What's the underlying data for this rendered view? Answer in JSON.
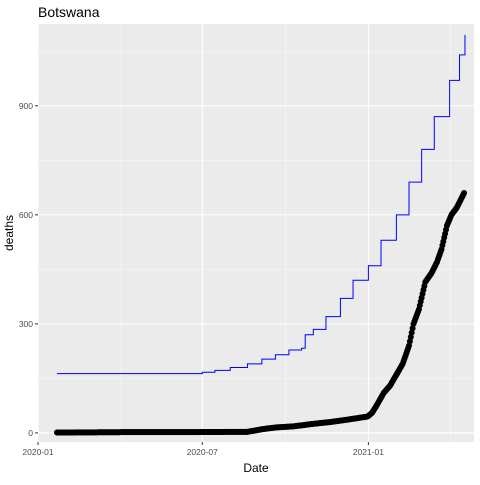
{
  "chart_data": {
    "type": "line",
    "title": "Botswana",
    "xlabel": "Date",
    "ylabel": "deaths",
    "x_type": "date",
    "xlim": [
      "2020-01-01",
      "2021-04-28"
    ],
    "ylim": [
      -25,
      1125
    ],
    "x_ticks": [
      "2020-01-01",
      "2020-07-01",
      "2021-01-01"
    ],
    "x_tick_labels": [
      "2020-01",
      "2020-07",
      "2021-01"
    ],
    "y_ticks": [
      0,
      300,
      600,
      900
    ],
    "y_tick_labels": [
      "0",
      "300",
      "600",
      "900"
    ],
    "grid": true,
    "legend": "none",
    "series": [
      {
        "kind": "step-line",
        "color": "#0000ff",
        "points": [
          [
            "2020-01-22",
            163
          ],
          [
            "2020-06-10",
            163
          ],
          [
            "2020-07-01",
            167
          ],
          [
            "2020-07-15",
            172
          ],
          [
            "2020-08-01",
            180
          ],
          [
            "2020-08-20",
            190
          ],
          [
            "2020-09-05",
            203
          ],
          [
            "2020-09-20",
            215
          ],
          [
            "2020-10-05",
            228
          ],
          [
            "2020-10-19",
            233
          ],
          [
            "2020-10-23",
            270
          ],
          [
            "2020-11-01",
            285
          ],
          [
            "2020-11-15",
            320
          ],
          [
            "2020-12-01",
            370
          ],
          [
            "2020-12-15",
            420
          ],
          [
            "2021-01-01",
            460
          ],
          [
            "2021-01-15",
            530
          ],
          [
            "2021-02-01",
            600
          ],
          [
            "2021-02-15",
            690
          ],
          [
            "2021-03-01",
            780
          ],
          [
            "2021-03-15",
            870
          ],
          [
            "2021-04-01",
            970
          ],
          [
            "2021-04-12",
            1040
          ],
          [
            "2021-04-18",
            1095
          ]
        ]
      },
      {
        "kind": "points",
        "color": "#000000",
        "points": [
          [
            "2020-01-22",
            1
          ],
          [
            "2020-04-01",
            2
          ],
          [
            "2020-06-01",
            2
          ],
          [
            "2020-08-20",
            3
          ],
          [
            "2020-09-05",
            10
          ],
          [
            "2020-09-20",
            15
          ],
          [
            "2020-10-10",
            18
          ],
          [
            "2020-11-01",
            25
          ],
          [
            "2020-11-20",
            30
          ],
          [
            "2020-12-10",
            37
          ],
          [
            "2020-12-31",
            45
          ],
          [
            "2021-01-05",
            55
          ],
          [
            "2021-01-10",
            75
          ],
          [
            "2021-01-18",
            110
          ],
          [
            "2021-01-25",
            130
          ],
          [
            "2021-02-01",
            160
          ],
          [
            "2021-02-08",
            190
          ],
          [
            "2021-02-15",
            240
          ],
          [
            "2021-02-20",
            300
          ],
          [
            "2021-02-26",
            340
          ],
          [
            "2021-03-05",
            415
          ],
          [
            "2021-03-12",
            440
          ],
          [
            "2021-03-18",
            470
          ],
          [
            "2021-03-23",
            505
          ],
          [
            "2021-03-29",
            570
          ],
          [
            "2021-04-03",
            600
          ],
          [
            "2021-04-09",
            620
          ],
          [
            "2021-04-13",
            640
          ],
          [
            "2021-04-17",
            660
          ]
        ]
      }
    ]
  }
}
